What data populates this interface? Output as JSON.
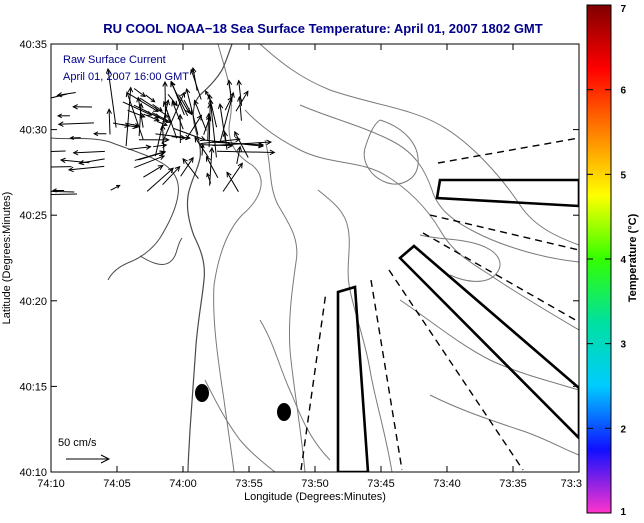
{
  "chart_data": {
    "type": "map",
    "title": "RU COOL  NOAA−18  Sea Surface Temperature:  April 01, 2007 1802 GMT",
    "xlabel": "Longitude (Degrees:Minutes)",
    "ylabel": "Latitude (Degrees:Minutes)",
    "x_ticks": [
      "74:10",
      "74:05",
      "74:00",
      "73:55",
      "73:50",
      "73:45",
      "73:40",
      "73:35",
      "73:3"
    ],
    "y_ticks": [
      "40:10",
      "40:15",
      "40:20",
      "40:25",
      "40:30",
      "40:35"
    ],
    "xlim_min": [
      -70,
      -33
    ],
    "ylim_min": [
      10,
      35
    ],
    "annotations": {
      "legend_line1": "Raw Surface Current",
      "legend_line2": "April 01, 2007 16:00 GMT",
      "scale_label": "50 cm/s"
    },
    "colorbar": {
      "label": "Temperature (°C)",
      "ticks": [
        "1",
        "2",
        "3",
        "4",
        "5",
        "6",
        "7"
      ],
      "range": [
        1,
        7
      ],
      "colormap": [
        "#ff33cc",
        "#1010ff",
        "#00ccff",
        "#00e0a0",
        "#33ff00",
        "#ffff00",
        "#ff8000",
        "#ff0000",
        "#800000"
      ]
    },
    "colors": {
      "title": "#00008b",
      "annotation": "#00008b",
      "contour": "#7a7a7a",
      "coast": "#4a4a4a",
      "axis": "#000000"
    }
  }
}
